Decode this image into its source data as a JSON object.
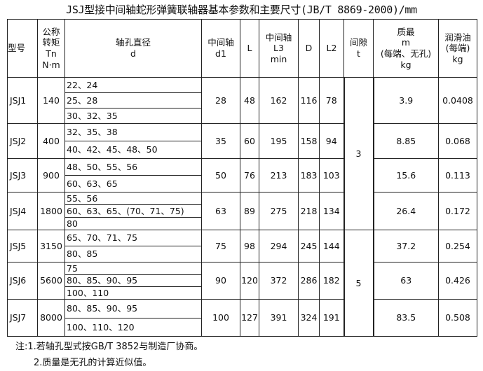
{
  "title": "JSJ型接中间轴蛇形弹簧联轴器基本参数和主要尺寸(JB/T 8869-2000)/mm",
  "headers": [
    [
      "型号"
    ],
    [
      "公称",
      "转矩",
      "Tn",
      "N·m"
    ],
    [
      "轴孔直径",
      "d"
    ],
    [
      "中间轴",
      "d1"
    ],
    [
      "L"
    ],
    [
      "中间轴",
      "L3",
      "min"
    ],
    [
      "D"
    ],
    [
      "L2"
    ],
    [
      "间隙",
      "t"
    ],
    [
      "质最",
      "m",
      "(每端、无孔)",
      "kg"
    ],
    [
      "润滑油",
      "(每端)",
      "kg"
    ]
  ],
  "rows": [
    {
      "model": "JSJ1",
      "tn": "140",
      "bores": [
        "22、24",
        "25、28",
        "30、32、35"
      ],
      "d1": "28",
      "L": "48",
      "L3": "162",
      "D": "116",
      "L2": "78",
      "mass": "3.9",
      "oil": "0.0408"
    },
    {
      "model": "JSJ2",
      "tn": "400",
      "bores": [
        "32、35、38",
        "40、42、45、48、50"
      ],
      "d1": "35",
      "L": "60",
      "L3": "195",
      "D": "158",
      "L2": "94",
      "mass": "8.85",
      "oil": "0.068"
    },
    {
      "model": "JSJ3",
      "tn": "900",
      "bores": [
        "48、50、55、56",
        "60、63、65"
      ],
      "d1": "50",
      "L": "76",
      "L3": "213",
      "D": "183",
      "L2": "103",
      "mass": "15.6",
      "oil": "0.113"
    },
    {
      "model": "JSJ4",
      "tn": "1800",
      "bores": [
        "55、56",
        "60、63、65、(70、71、75)",
        "80"
      ],
      "d1": "63",
      "L": "89",
      "L3": "275",
      "D": "218",
      "L2": "134",
      "mass": "26.4",
      "oil": "0.172"
    },
    {
      "model": "JSJ5",
      "tn": "3150",
      "bores": [
        "65、70、71、75",
        "80、85"
      ],
      "d1": "75",
      "L": "98",
      "L3": "294",
      "D": "245",
      "L2": "144",
      "mass": "37.2",
      "oil": "0.254"
    },
    {
      "model": "JSJ6",
      "tn": "5600",
      "bores": [
        "75",
        "80、85、90、95",
        "100、110"
      ],
      "d1": "90",
      "L": "120",
      "L3": "372",
      "D": "286",
      "L2": "182",
      "mass": "63",
      "oil": "0.426"
    },
    {
      "model": "JSJ7",
      "tn": "8000",
      "bores": [
        "80、85、90、95",
        "100、110、120"
      ],
      "d1": "100",
      "L": "127",
      "L3": "391",
      "D": "324",
      "L2": "191",
      "mass": "83.5",
      "oil": "0.508"
    }
  ],
  "gap_groups": [
    {
      "value": "3",
      "rows": 4
    },
    {
      "value": "5",
      "rows": 3
    }
  ],
  "notes": [
    "注:1.若轴孔型式按GB/T 3852与制造厂协商。",
    "2.质量是无孔的计算近似值。"
  ]
}
